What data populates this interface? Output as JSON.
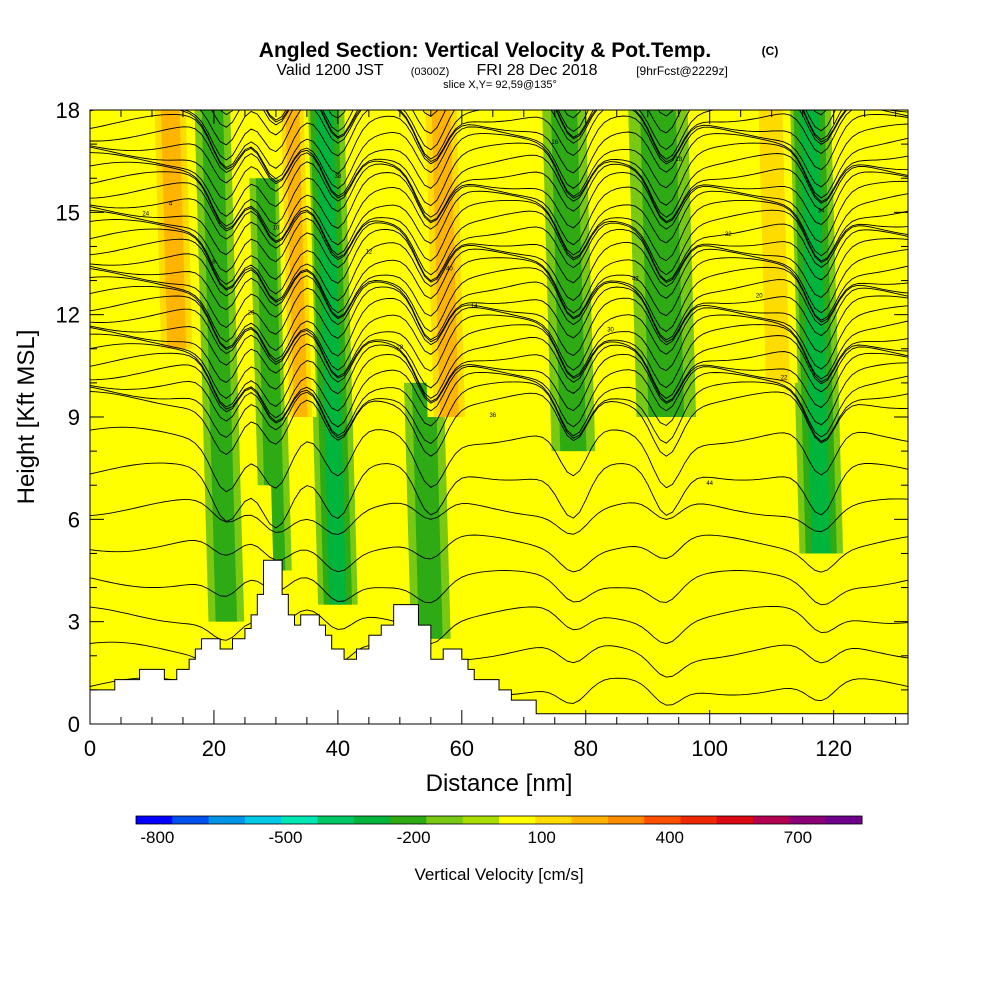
{
  "title": {
    "main": "Angled Section: Vertical Velocity & Pot.Temp.",
    "main_unit": "(C)",
    "valid_prefix": "Valid 1200 JST",
    "valid_zulu": "(0300Z)",
    "valid_date": "FRI 28 Dec 2018",
    "forecast": "[9hrFcst@2229z]",
    "slice": "slice X,Y= 92,59@135°"
  },
  "chart_data": {
    "type": "heatmap",
    "xlabel": "Distance [nm]",
    "ylabel": "Height [Kft MSL]",
    "xlim": [
      0,
      132
    ],
    "ylim": [
      0,
      18
    ],
    "xticks": [
      "0",
      "20",
      "40",
      "60",
      "80",
      "100",
      "120"
    ],
    "yticks": [
      "0",
      "3",
      "6",
      "9",
      "12",
      "15",
      "18"
    ],
    "colorbar": {
      "label": "Vertical Velocity [cm/s]",
      "tick_labels": [
        "-800",
        "-500",
        "-200",
        "100",
        "400",
        "700"
      ],
      "tick_values": [
        -800,
        -500,
        -200,
        100,
        400,
        700
      ],
      "range": [
        -850,
        850
      ],
      "step": 100,
      "colors": [
        "#0000ff",
        "#0050f0",
        "#0095e6",
        "#00c8e6",
        "#00e6b4",
        "#00c864",
        "#00b43c",
        "#2daa14",
        "#78c814",
        "#aadc00",
        "#ffff00",
        "#ffdc00",
        "#ffb400",
        "#ff8c00",
        "#ff5000",
        "#f02800",
        "#dc0a14",
        "#b40050",
        "#8c0078",
        "#6e008c"
      ]
    },
    "terrain_kft": [
      [
        0,
        1.0
      ],
      [
        4,
        1.0
      ],
      [
        4,
        1.3
      ],
      [
        8,
        1.3
      ],
      [
        8,
        1.6
      ],
      [
        12,
        1.6
      ],
      [
        12,
        1.3
      ],
      [
        14,
        1.3
      ],
      [
        14,
        1.6
      ],
      [
        16,
        1.6
      ],
      [
        16,
        1.9
      ],
      [
        17,
        1.9
      ],
      [
        17,
        2.2
      ],
      [
        18,
        2.2
      ],
      [
        18,
        2.5
      ],
      [
        21,
        2.5
      ],
      [
        21,
        2.2
      ],
      [
        23,
        2.2
      ],
      [
        23,
        2.5
      ],
      [
        25,
        2.5
      ],
      [
        25,
        2.8
      ],
      [
        26,
        2.8
      ],
      [
        26,
        3.2
      ],
      [
        27,
        3.2
      ],
      [
        27,
        3.8
      ],
      [
        28,
        3.8
      ],
      [
        28,
        4.8
      ],
      [
        31,
        4.8
      ],
      [
        31,
        3.8
      ],
      [
        32,
        3.8
      ],
      [
        32,
        3.2
      ],
      [
        33,
        3.2
      ],
      [
        33,
        2.9
      ],
      [
        34,
        2.9
      ],
      [
        34,
        3.2
      ],
      [
        37,
        3.2
      ],
      [
        37,
        2.9
      ],
      [
        38,
        2.9
      ],
      [
        38,
        2.6
      ],
      [
        39,
        2.6
      ],
      [
        39,
        2.2
      ],
      [
        41,
        2.2
      ],
      [
        41,
        1.9
      ],
      [
        43,
        1.9
      ],
      [
        43,
        2.2
      ],
      [
        45,
        2.2
      ],
      [
        45,
        2.6
      ],
      [
        47,
        2.6
      ],
      [
        47,
        2.9
      ],
      [
        49,
        2.9
      ],
      [
        49,
        3.5
      ],
      [
        53,
        3.5
      ],
      [
        53,
        2.9
      ],
      [
        55,
        2.9
      ],
      [
        55,
        1.9
      ],
      [
        57,
        1.9
      ],
      [
        57,
        2.2
      ],
      [
        60,
        2.2
      ],
      [
        60,
        1.9
      ],
      [
        61,
        1.9
      ],
      [
        61,
        1.6
      ],
      [
        62,
        1.6
      ],
      [
        62,
        1.3
      ],
      [
        66,
        1.3
      ],
      [
        66,
        1.0
      ],
      [
        68,
        1.0
      ],
      [
        68,
        0.7
      ],
      [
        72,
        0.7
      ],
      [
        72,
        0.3
      ],
      [
        132,
        0.3
      ]
    ],
    "bands": [
      {
        "value": -200,
        "x": 22,
        "w": 1.8,
        "zmin": 3,
        "zmax": 18
      },
      {
        "value": -200,
        "x": 30,
        "w": 1.6,
        "zmin": 4.5,
        "zmax": 16
      },
      {
        "value": -250,
        "x": 40,
        "w": 2.0,
        "zmin": 3.5,
        "zmax": 18
      },
      {
        "value": -200,
        "x": 55,
        "w": 2.0,
        "zmin": 2.5,
        "zmax": 10
      },
      {
        "value": -200,
        "x": 78,
        "w": 2.2,
        "zmin": 8,
        "zmax": 18
      },
      {
        "value": -200,
        "x": 93,
        "w": 3.0,
        "zmin": 9,
        "zmax": 18
      },
      {
        "value": -250,
        "x": 118,
        "w": 2.2,
        "zmin": 5,
        "zmax": 18
      },
      {
        "value": 350,
        "x": 14,
        "w": 2.2,
        "zmin": 11,
        "zmax": 18
      },
      {
        "value": 400,
        "x": 34,
        "w": 1.6,
        "zmin": 9,
        "zmax": 18
      },
      {
        "value": 380,
        "x": 58,
        "w": 2.2,
        "zmin": 9,
        "zmax": 18
      },
      {
        "value": 300,
        "x": 111,
        "w": 2.0,
        "zmin": 10,
        "zmax": 18
      },
      {
        "value": 200,
        "x": 28,
        "w": 1.0,
        "zmin": 4.5,
        "zmax": 7
      },
      {
        "value": 150,
        "x": 48,
        "w": 1.0,
        "zmin": 3.2,
        "zmax": 5
      }
    ],
    "isentrope_labels": [
      "4",
      "8",
      "10",
      "12",
      "14",
      "16",
      "18",
      "20",
      "22",
      "24",
      "26",
      "28",
      "30",
      "32",
      "34",
      "36",
      "38",
      "40",
      "42",
      "44"
    ]
  }
}
